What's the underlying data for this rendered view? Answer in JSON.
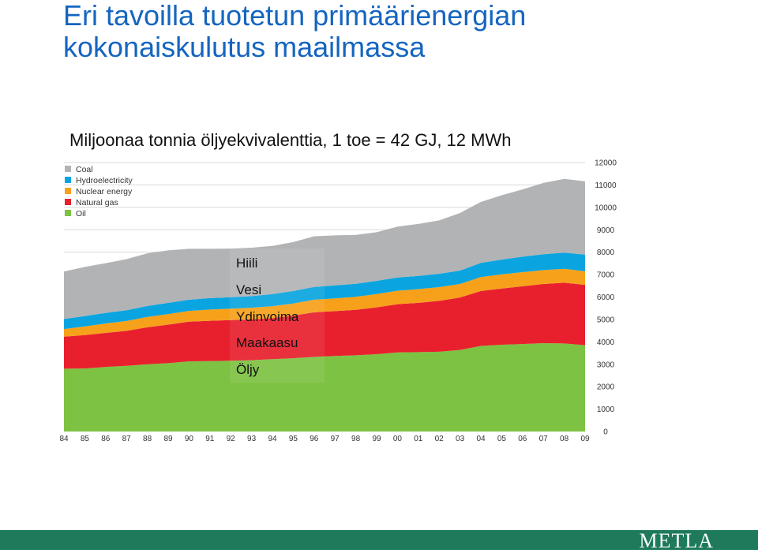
{
  "title_lines": [
    "Eri tavoilla tuotetun primäärienergian",
    "kokonaiskulutus maailmassa"
  ],
  "subtitle": "Miljoonaa tonnia öljyekvivalenttia, 1 toe = 42 GJ, 12 MWh",
  "finnish_labels": [
    "Hiili",
    "Vesi",
    "Ydinvoima",
    "Maakaasu",
    "Öljy"
  ],
  "logo": "METLA",
  "colors": {
    "title": "#1565c0",
    "footer": "#1e7a5a"
  },
  "chart_data": {
    "type": "area",
    "stacked": true,
    "x": [
      "84",
      "85",
      "86",
      "87",
      "88",
      "89",
      "90",
      "91",
      "92",
      "93",
      "94",
      "95",
      "96",
      "97",
      "98",
      "99",
      "00",
      "01",
      "02",
      "03",
      "04",
      "05",
      "06",
      "07",
      "08",
      "09"
    ],
    "ylim": [
      0,
      12000
    ],
    "yticks": [
      0,
      1000,
      2000,
      3000,
      4000,
      5000,
      6000,
      7000,
      8000,
      9000,
      10000,
      11000,
      12000
    ],
    "y_axis_position": "right",
    "grid": true,
    "legend_position": "top-left",
    "series": [
      {
        "name": "Oil",
        "color": "#7dc242",
        "values": [
          2800,
          2810,
          2880,
          2930,
          3000,
          3050,
          3130,
          3140,
          3160,
          3180,
          3230,
          3270,
          3330,
          3370,
          3400,
          3450,
          3530,
          3540,
          3560,
          3640,
          3820,
          3870,
          3900,
          3940,
          3930,
          3850
        ]
      },
      {
        "name": "Natural gas",
        "color": "#e8202e",
        "values": [
          1430,
          1490,
          1520,
          1560,
          1650,
          1720,
          1770,
          1800,
          1810,
          1820,
          1830,
          1900,
          1990,
          2000,
          2030,
          2090,
          2150,
          2200,
          2270,
          2340,
          2450,
          2510,
          2580,
          2640,
          2710,
          2690
        ]
      },
      {
        "name": "Nuclear energy",
        "color": "#f7a11a",
        "values": [
          340,
          390,
          420,
          440,
          460,
          470,
          480,
          500,
          510,
          520,
          530,
          540,
          560,
          570,
          580,
          590,
          600,
          610,
          610,
          600,
          620,
          630,
          630,
          620,
          620,
          610
        ]
      },
      {
        "name": "Hydroelectricity",
        "color": "#0aa5e0",
        "values": [
          450,
          460,
          470,
          480,
          490,
          500,
          500,
          510,
          510,
          520,
          540,
          560,
          570,
          580,
          580,
          590,
          590,
          590,
          600,
          600,
          630,
          660,
          690,
          710,
          720,
          740
        ]
      },
      {
        "name": "Coal",
        "color": "#b2b3b5",
        "values": [
          2120,
          2190,
          2220,
          2280,
          2350,
          2340,
          2270,
          2200,
          2170,
          2160,
          2150,
          2180,
          2260,
          2230,
          2180,
          2170,
          2270,
          2320,
          2380,
          2570,
          2720,
          2870,
          3000,
          3180,
          3290,
          3270
        ]
      }
    ]
  }
}
